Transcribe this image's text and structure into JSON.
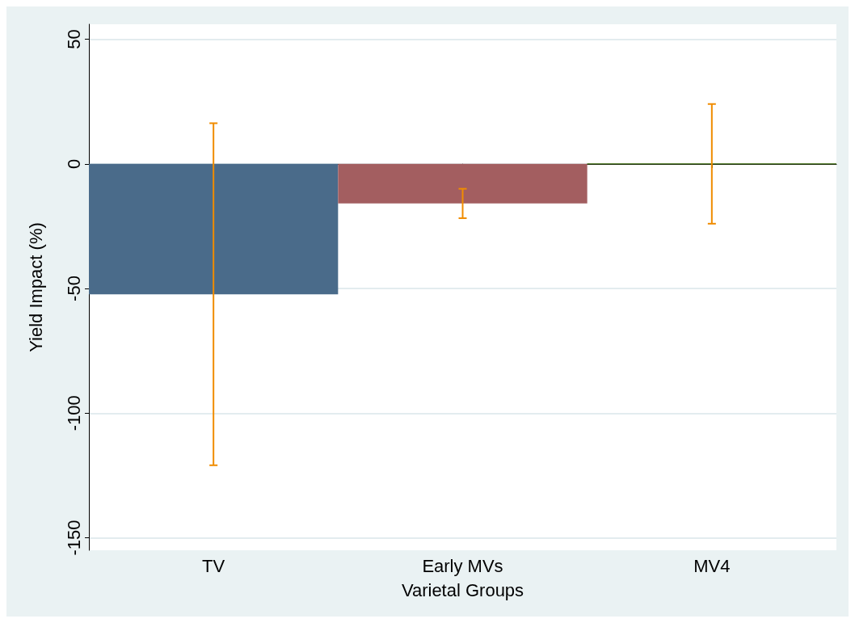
{
  "chart_data": {
    "type": "bar",
    "xlabel": "Varietal Groups",
    "ylabel": "Yield Impact (%)",
    "categories": [
      "TV",
      "Early MVs",
      "MV4"
    ],
    "values": [
      -52.3,
      -15.9,
      0
    ],
    "colors": [
      "#4a6b8a",
      "#a35e60",
      "#4f7a28"
    ],
    "errors": [
      68.6,
      5.9,
      24
    ],
    "ylim": [
      -155,
      56
    ],
    "yticks": [
      -150,
      -100,
      -50,
      0,
      50
    ],
    "grid": "y"
  }
}
